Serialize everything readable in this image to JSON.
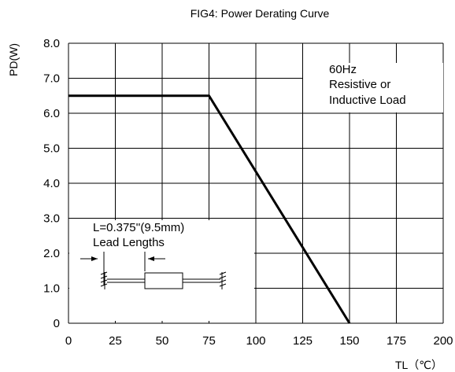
{
  "chart_data": {
    "type": "line",
    "title": "FIG4: Power Derating Curve",
    "xlabel": "TL（℃）",
    "ylabel": "PD(W)",
    "xlim": [
      0,
      200
    ],
    "ylim": [
      0,
      8
    ],
    "x_ticks": [
      "0",
      "25",
      "50",
      "75",
      "100",
      "125",
      "150",
      "175",
      "200"
    ],
    "y_ticks": [
      "0",
      "1.0",
      "2.0",
      "3.0",
      "4.0",
      "5.0",
      "6.0",
      "7.0",
      "8.0"
    ],
    "grid": true,
    "series": [
      {
        "x": [
          0,
          75,
          150
        ],
        "y": [
          6.5,
          6.5,
          0
        ]
      }
    ],
    "annotations": {
      "condition_lines": [
        "60Hz",
        "Resistive or",
        "Inductive Load"
      ],
      "lead_lines": [
        "L=0.375''(9.5mm)",
        "Lead Lengths"
      ]
    },
    "colors": {
      "curve": "#000000",
      "grid": "#000000",
      "background": "#ffffff"
    }
  }
}
